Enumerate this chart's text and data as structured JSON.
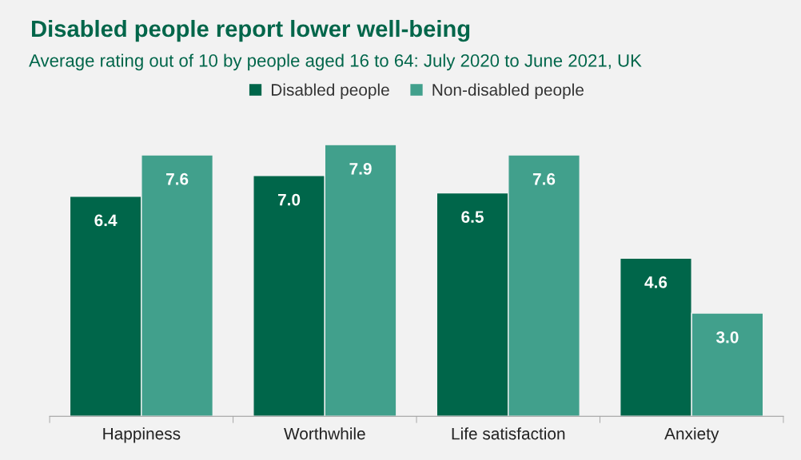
{
  "chart_data": {
    "type": "bar",
    "title": "Disabled people report lower well-being",
    "subtitle": "Average rating out of 10 by people aged 16 to 64: July 2020 to June 2021, UK",
    "categories": [
      "Happiness",
      "Worthwhile",
      "Life satisfaction",
      "Anxiety"
    ],
    "series": [
      {
        "name": "Disabled people",
        "color": "#00664a",
        "values": [
          6.4,
          7.0,
          6.5,
          4.6
        ],
        "value_labels": [
          "6.4",
          "7.0",
          "6.5",
          "4.6"
        ]
      },
      {
        "name": "Non-disabled people",
        "color": "#41a08c",
        "values": [
          7.6,
          7.9,
          7.6,
          3.0
        ],
        "value_labels": [
          "7.6",
          "7.9",
          "7.6",
          "3.0"
        ]
      }
    ],
    "legend": "top",
    "grid": false
  }
}
